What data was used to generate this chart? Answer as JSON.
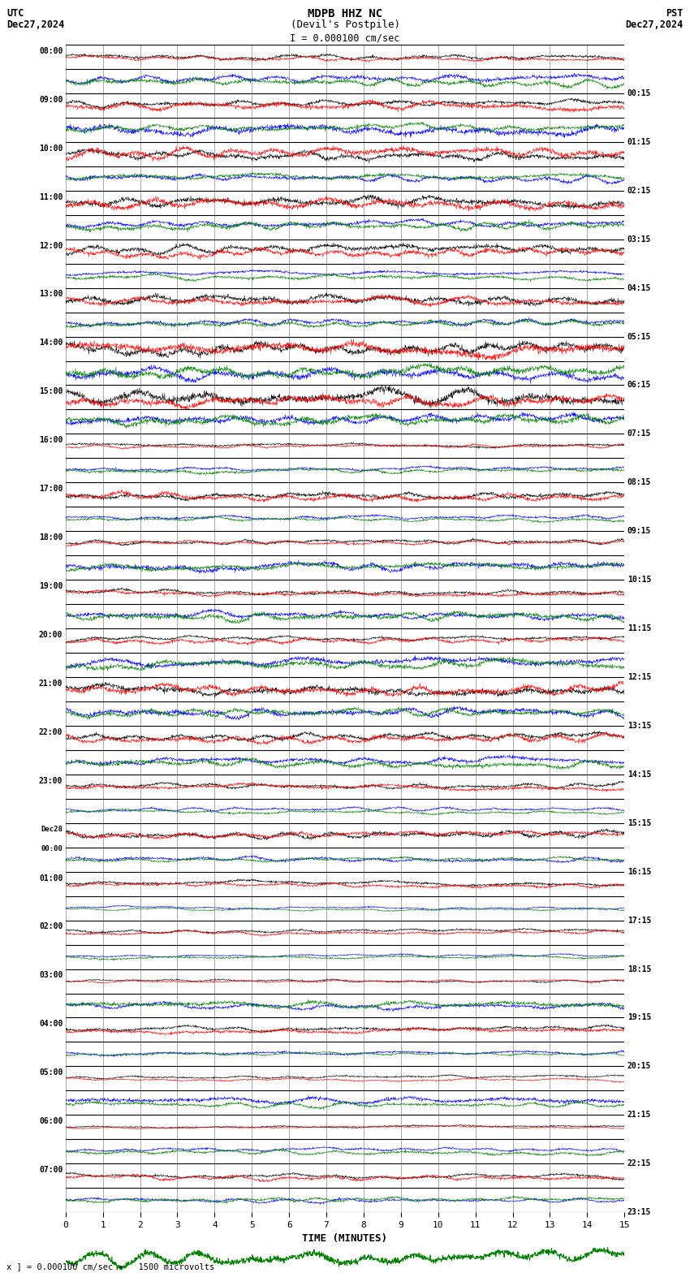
{
  "title_center": "MDPB HHZ NC",
  "title_sub": "(Devil's Postpile)",
  "title_left": "UTC",
  "title_left2": "Dec27,2024",
  "title_right": "PST",
  "title_right2": "Dec27,2024",
  "scale_label": "I = 0.000100 cm/sec",
  "bottom_label": "x ] = 0.000100 cm/sec =   1500 microvolts",
  "xlabel": "TIME (MINUTES)",
  "background_color": "#ffffff",
  "line_colors": [
    "black",
    "red",
    "blue",
    "green"
  ],
  "grid_color": "#000000",
  "minor_grid_color": "#aaaaaa",
  "left_labels": [
    "08:00",
    "09:00",
    "10:00",
    "11:00",
    "12:00",
    "13:00",
    "14:00",
    "15:00",
    "16:00",
    "17:00",
    "18:00",
    "19:00",
    "20:00",
    "21:00",
    "22:00",
    "23:00",
    "Dec28\n00:00",
    "01:00",
    "02:00",
    "03:00",
    "04:00",
    "05:00",
    "06:00",
    "07:00"
  ],
  "right_labels": [
    "00:15",
    "01:15",
    "02:15",
    "03:15",
    "04:15",
    "05:15",
    "06:15",
    "07:15",
    "08:15",
    "09:15",
    "10:15",
    "11:15",
    "12:15",
    "13:15",
    "14:15",
    "15:15",
    "16:15",
    "17:15",
    "18:15",
    "19:15",
    "20:15",
    "21:15",
    "22:15",
    "23:15"
  ],
  "n_rows": 24,
  "x_ticks": [
    0,
    1,
    2,
    3,
    4,
    5,
    6,
    7,
    8,
    9,
    10,
    11,
    12,
    13,
    14,
    15
  ],
  "figsize": [
    8.5,
    15.84
  ],
  "dpi": 100
}
